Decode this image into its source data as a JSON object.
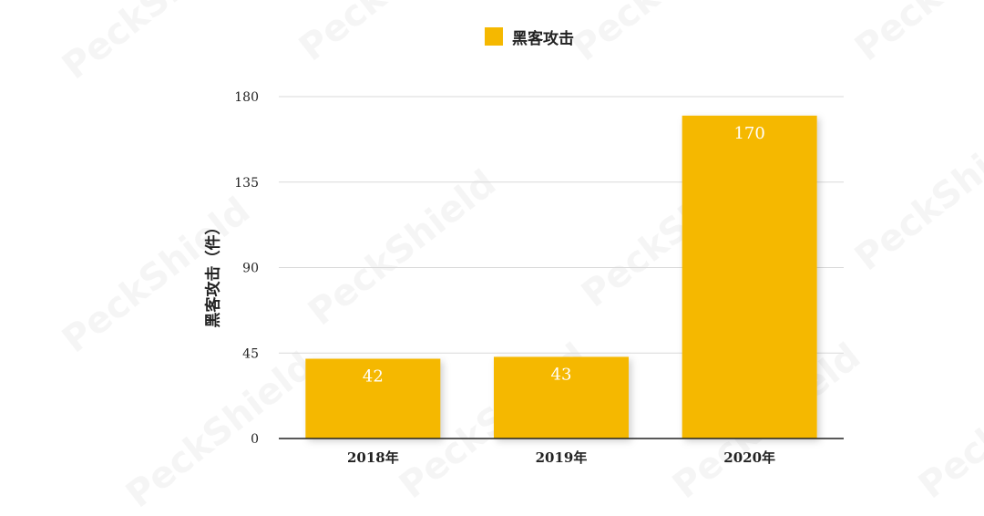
{
  "colors": {
    "bar": "#F5B800",
    "grid": "#d9d9d9",
    "axis": "#222222",
    "text": "#222222",
    "bar_label": "#ffffff"
  },
  "watermark": {
    "text": "PeckShield"
  },
  "chart_data": {
    "type": "bar",
    "categories": [
      "2018年",
      "2019年",
      "2020年"
    ],
    "series": [
      {
        "name": "黑客攻击",
        "values": [
          42,
          43,
          170
        ]
      }
    ],
    "title": "",
    "xlabel": "",
    "ylabel": "黑客攻击（件）",
    "ylim": [
      0,
      180
    ],
    "yticks": [
      0,
      45,
      90,
      135,
      180
    ],
    "grid": true,
    "legend": "top-center",
    "data_labels": true
  }
}
